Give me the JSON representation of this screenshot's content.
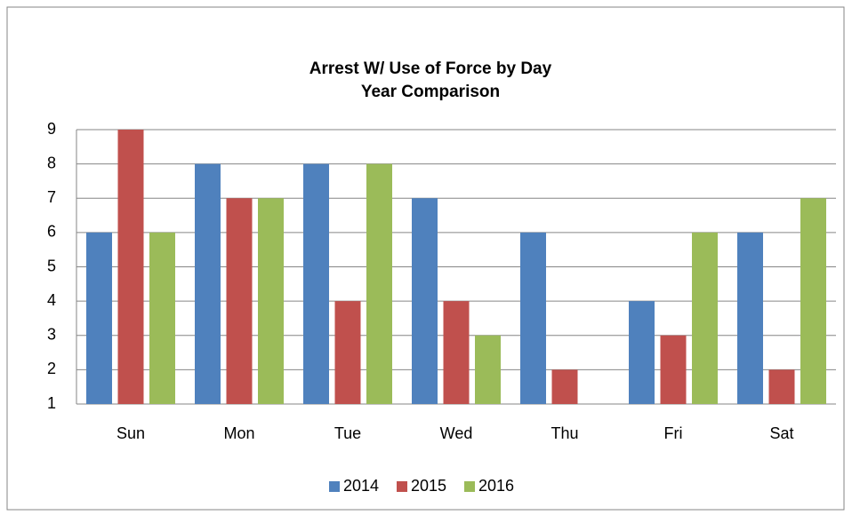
{
  "chart_data": {
    "type": "bar",
    "title": "Arrest W/ Use of Force by Day",
    "subtitle": "Year Comparison",
    "categories": [
      "Sun",
      "Mon",
      "Tue",
      "Wed",
      "Thu",
      "Fri",
      "Sat"
    ],
    "series": [
      {
        "name": "2014",
        "color": "#4f81bd",
        "values": [
          6,
          8,
          8,
          7,
          6,
          4,
          6
        ]
      },
      {
        "name": "2015",
        "color": "#c0504d",
        "values": [
          9,
          7,
          4,
          4,
          2,
          3,
          2
        ]
      },
      {
        "name": "2016",
        "color": "#9bbb59",
        "values": [
          6,
          7,
          8,
          3,
          1,
          6,
          7
        ]
      }
    ],
    "ylim": [
      1,
      9
    ],
    "yticks": [
      1,
      2,
      3,
      4,
      5,
      6,
      7,
      8,
      9
    ],
    "grid": true,
    "legend": "bottom"
  }
}
